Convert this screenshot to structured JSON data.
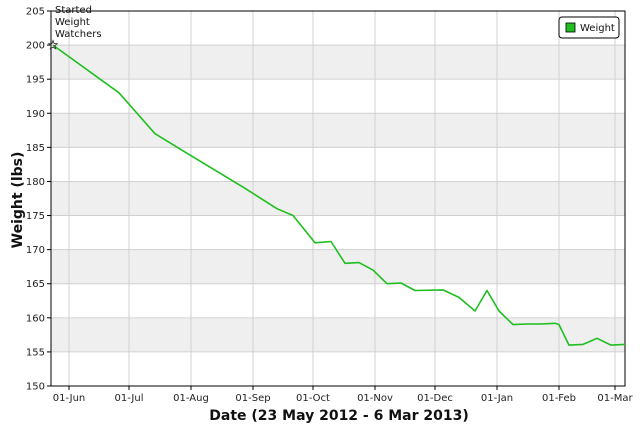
{
  "chart_data": {
    "type": "line",
    "title": "",
    "xlabel": "Date  (23 May 2012 - 6 Mar 2013)",
    "ylabel": "Weight  (lbs)",
    "ylim": [
      150,
      205
    ],
    "xlim": [
      "2012-05-23",
      "2013-03-06"
    ],
    "y_ticks": [
      150,
      155,
      160,
      165,
      170,
      175,
      180,
      185,
      190,
      195,
      200,
      205
    ],
    "x_ticks": [
      {
        "date": "2012-06-01",
        "label": "01-Jun"
      },
      {
        "date": "2012-07-01",
        "label": "01-Jul"
      },
      {
        "date": "2012-08-01",
        "label": "01-Aug"
      },
      {
        "date": "2012-09-01",
        "label": "01-Sep"
      },
      {
        "date": "2012-10-01",
        "label": "01-Oct"
      },
      {
        "date": "2012-11-01",
        "label": "01-Nov"
      },
      {
        "date": "2012-12-01",
        "label": "01-Dec"
      },
      {
        "date": "2013-01-01",
        "label": "01-Jan"
      },
      {
        "date": "2013-02-01",
        "label": "01-Feb"
      },
      {
        "date": "2013-03-01",
        "label": "01-Mar"
      }
    ],
    "grid": true,
    "alternating_bands": true,
    "legend_position": "top-right",
    "series": [
      {
        "name": "Weight",
        "color": "#1fbf1f",
        "points": [
          {
            "x": "2012-05-24",
            "y": 200
          },
          {
            "x": "2012-06-26",
            "y": 193
          },
          {
            "x": "2012-07-14",
            "y": 187
          },
          {
            "x": "2012-07-28",
            "y": 184.5
          },
          {
            "x": "2012-08-28",
            "y": 179
          },
          {
            "x": "2012-09-13",
            "y": 176
          },
          {
            "x": "2012-09-21",
            "y": 175
          },
          {
            "x": "2012-10-02",
            "y": 171
          },
          {
            "x": "2012-10-10",
            "y": 171.2
          },
          {
            "x": "2012-10-17",
            "y": 168
          },
          {
            "x": "2012-10-24",
            "y": 168.1
          },
          {
            "x": "2012-10-31",
            "y": 167
          },
          {
            "x": "2012-11-07",
            "y": 165
          },
          {
            "x": "2012-11-14",
            "y": 165.1
          },
          {
            "x": "2012-11-21",
            "y": 164
          },
          {
            "x": "2012-12-05",
            "y": 164.1
          },
          {
            "x": "2012-12-13",
            "y": 163
          },
          {
            "x": "2012-12-21",
            "y": 161
          },
          {
            "x": "2012-12-27",
            "y": 164
          },
          {
            "x": "2013-01-02",
            "y": 161
          },
          {
            "x": "2013-01-09",
            "y": 159
          },
          {
            "x": "2013-01-16",
            "y": 159.1
          },
          {
            "x": "2013-01-23",
            "y": 159.1
          },
          {
            "x": "2013-01-30",
            "y": 159.2
          },
          {
            "x": "2013-02-01",
            "y": 159
          },
          {
            "x": "2013-02-06",
            "y": 156
          },
          {
            "x": "2013-02-13",
            "y": 156.1
          },
          {
            "x": "2013-02-20",
            "y": 157
          },
          {
            "x": "2013-02-27",
            "y": 156
          },
          {
            "x": "2013-03-06",
            "y": 156.1
          }
        ]
      }
    ],
    "annotations": [
      {
        "x": "2012-05-24",
        "y": 200,
        "marker": "star",
        "text_lines": [
          "Started",
          "Weight",
          "Watchers"
        ]
      }
    ]
  }
}
